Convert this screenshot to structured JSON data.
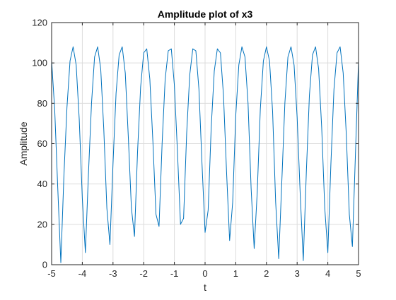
{
  "colors": {
    "background": "#ffffff",
    "axes": "#262626",
    "grid": "#dcdcdc",
    "series": "#0072bd"
  },
  "chart_data": {
    "type": "line",
    "title": "Amplitude plot of x3",
    "xlabel": "t",
    "ylabel": "Amplitude",
    "xlim": [
      -5,
      5
    ],
    "ylim": [
      0,
      120
    ],
    "xticks": [
      "-5",
      "-4",
      "-3",
      "-2",
      "-1",
      "0",
      "1",
      "2",
      "3",
      "4",
      "5"
    ],
    "yticks": [
      "0",
      "20",
      "40",
      "60",
      "80",
      "100",
      "120"
    ],
    "xtick_values": [
      -5,
      -4,
      -3,
      -2,
      -1,
      0,
      1,
      2,
      3,
      4,
      5
    ],
    "ytick_values": [
      0,
      20,
      40,
      60,
      80,
      100,
      120
    ],
    "grid": true,
    "legend": "none",
    "series": [
      {
        "x": [
          -5.0,
          -4.9,
          -4.8,
          -4.7,
          -4.6,
          -4.5,
          -4.4,
          -4.3,
          -4.2,
          -4.1,
          -4.0,
          -3.9,
          -3.8,
          -3.7,
          -3.6,
          -3.5,
          -3.4,
          -3.3,
          -3.2,
          -3.1,
          -3.0,
          -2.9,
          -2.8,
          -2.7,
          -2.6,
          -2.5,
          -2.4,
          -2.3,
          -2.2,
          -2.1,
          -2.0,
          -1.9,
          -1.8,
          -1.7,
          -1.6,
          -1.5,
          -1.4,
          -1.3,
          -1.2,
          -1.1,
          -1.0,
          -0.9,
          -0.8,
          -0.7,
          -0.6,
          -0.5,
          -0.4,
          -0.3,
          -0.2,
          -0.1,
          0.0,
          0.1,
          0.2,
          0.3,
          0.4,
          0.5,
          0.6,
          0.7,
          0.8,
          0.9,
          1.0,
          1.1,
          1.2,
          1.3,
          1.4,
          1.5,
          1.6,
          1.7,
          1.8,
          1.9,
          2.0,
          2.1,
          2.2,
          2.3,
          2.4,
          2.5,
          2.6,
          2.7,
          2.8,
          2.9,
          3.0,
          3.1,
          3.2,
          3.3,
          3.4,
          3.5,
          3.6,
          3.7,
          3.8,
          3.9,
          4.0,
          4.1,
          4.2,
          4.3,
          4.4,
          4.5,
          4.6,
          4.7,
          4.8,
          4.9,
          5.0
        ],
        "y": [
          101,
          77,
          38,
          1,
          44,
          78,
          101,
          108,
          99,
          72,
          33,
          6,
          45,
          80,
          103,
          108,
          97,
          67,
          28,
          10,
          50,
          85,
          104,
          108,
          95,
          63,
          28,
          14,
          56,
          88,
          105,
          107,
          92,
          61,
          25,
          19,
          60,
          92,
          106,
          107,
          89,
          56,
          20,
          23,
          65,
          94,
          107,
          106,
          87,
          50,
          16,
          27,
          68,
          96,
          107,
          105,
          84,
          46,
          12,
          31,
          74,
          99,
          108,
          103,
          80,
          38,
          8,
          36,
          77,
          101,
          108,
          101,
          76,
          31,
          3,
          41,
          80,
          103,
          108,
          99,
          73,
          35,
          2,
          46,
          84,
          104,
          108,
          97,
          68,
          28,
          6,
          50,
          87,
          105,
          108,
          95,
          65,
          25,
          9,
          55,
          101
        ]
      }
    ]
  }
}
